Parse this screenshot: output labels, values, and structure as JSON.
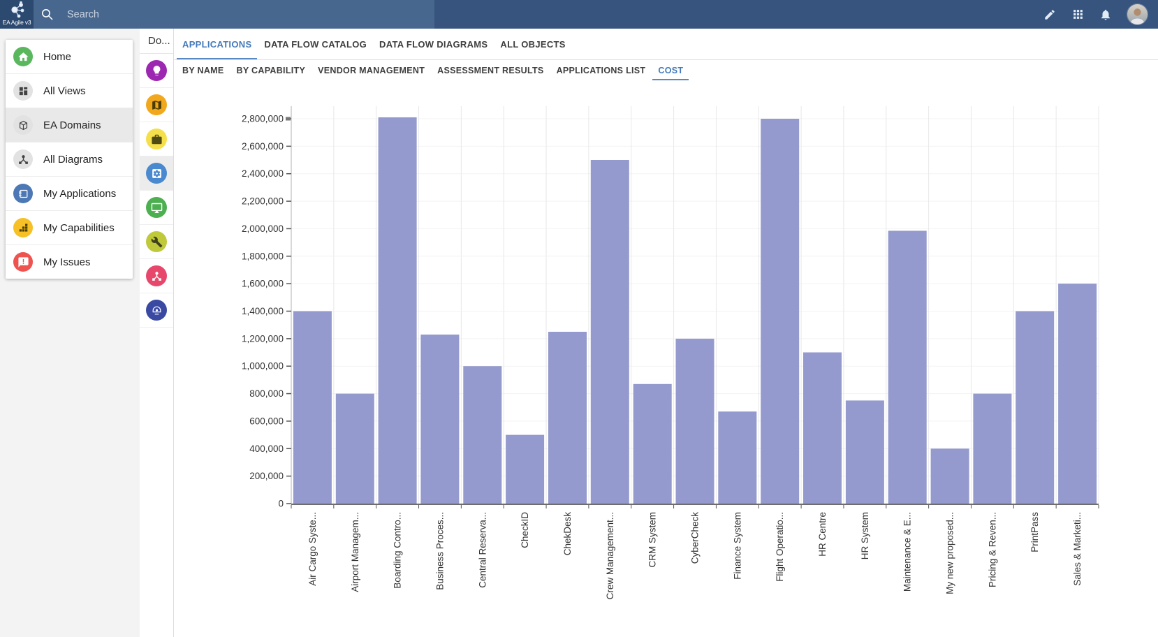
{
  "header": {
    "logo_text": "EA Agile v3",
    "search_placeholder": "Search",
    "colors": {
      "bar": "#36547E",
      "logo_block": "#2C4970",
      "search_field": "#47678F"
    }
  },
  "sidebar": {
    "items": [
      {
        "label": "Home",
        "icon": "home-icon",
        "color": "#5BB75E",
        "glyph": "#FFFFFF",
        "selected": false
      },
      {
        "label": "All Views",
        "icon": "views-grid-icon",
        "color": "#E2E2E2",
        "glyph": "#424242",
        "selected": false
      },
      {
        "label": "EA Domains",
        "icon": "cube-icon",
        "color": "#E2E2E2",
        "glyph": "#424242",
        "selected": true
      },
      {
        "label": "All Diagrams",
        "icon": "diagram-nodes-icon",
        "color": "#E2E2E2",
        "glyph": "#424242",
        "selected": false
      },
      {
        "label": "My Applications",
        "icon": "application-window-icon",
        "color": "#4C78B5",
        "glyph": "#FFFFFF",
        "selected": false
      },
      {
        "label": "My Capabilities",
        "icon": "capability-blocks-icon",
        "color": "#F6C026",
        "glyph": "#4A3B00",
        "selected": false
      },
      {
        "label": "My Issues",
        "icon": "issue-bubble-icon",
        "color": "#EF5350",
        "glyph": "#FFFFFF",
        "selected": false
      }
    ]
  },
  "domain_rail": {
    "title": "Do...",
    "items": [
      {
        "icon": "lightbulb-icon",
        "color": "#9C27B0",
        "glyph": "#FFFFFF",
        "selected": false
      },
      {
        "icon": "map-icon",
        "color": "#F2A81D",
        "glyph": "#4A3B00",
        "selected": false
      },
      {
        "icon": "briefcase-icon",
        "color": "#F5E04B",
        "glyph": "#4F4A14",
        "selected": false
      },
      {
        "icon": "settings-app-icon",
        "color": "#4A89D0",
        "glyph": "#FFFFFF",
        "selected": true
      },
      {
        "icon": "monitor-icon",
        "color": "#4CAF50",
        "glyph": "#FFFFFF",
        "selected": false
      },
      {
        "icon": "wrench-icon",
        "color": "#BFC93A",
        "glyph": "#3E421A",
        "selected": false
      },
      {
        "icon": "hierarchy-icon",
        "color": "#E8476C",
        "glyph": "#FFFFFF",
        "selected": false
      },
      {
        "icon": "dome-camera-icon",
        "color": "#3A4AA3",
        "glyph": "#FFFFFF",
        "selected": false
      }
    ]
  },
  "tabs": {
    "primary": [
      "APPLICATIONS",
      "DATA FLOW CATALOG",
      "DATA FLOW DIAGRAMS",
      "ALL OBJECTS"
    ],
    "primary_active": "APPLICATIONS",
    "secondary": [
      "BY NAME",
      "BY CAPABILITY",
      "VENDOR MANAGEMENT",
      "ASSESSMENT RESULTS",
      "APPLICATIONS LIST",
      "COST"
    ],
    "secondary_active": "COST"
  },
  "chart_data": {
    "type": "bar",
    "title": "",
    "xlabel": "",
    "ylabel": "",
    "categories": [
      "Air Cargo Syste...",
      "Airport Managem...",
      "Boarding Contro...",
      "Business Proces...",
      "Central Reserva...",
      "CheckID",
      "ChekDesk",
      "Crew Management...",
      "CRM System",
      "CyberCheck",
      "Finance System",
      "Flight Operatio...",
      "HR Centre",
      "HR System",
      "Maintenance & E...",
      "My new proposed...",
      "Pricing & Reven...",
      "PrintPass",
      "Sales & Marketi..."
    ],
    "values": [
      1400000,
      800000,
      2810000,
      1230000,
      1000000,
      500000,
      1250000,
      2500000,
      870000,
      1200000,
      670000,
      2800000,
      1100000,
      750000,
      1985000,
      400000,
      800000,
      1400000,
      1600000
    ],
    "ylim": [
      0,
      2800000
    ],
    "ytick_step": 200000,
    "ytick_labels": [
      "0",
      "200,000",
      "400,000",
      "600,000",
      "800,000",
      "1,000,000",
      "1,200,000",
      "1,400,000",
      "1,600,000",
      "1,800,000",
      "2,000,000",
      "2,200,000",
      "2,400,000",
      "2,600,000",
      "2,800,000"
    ],
    "bar_color": "#949ACD",
    "grid": "both",
    "legend": "none"
  }
}
